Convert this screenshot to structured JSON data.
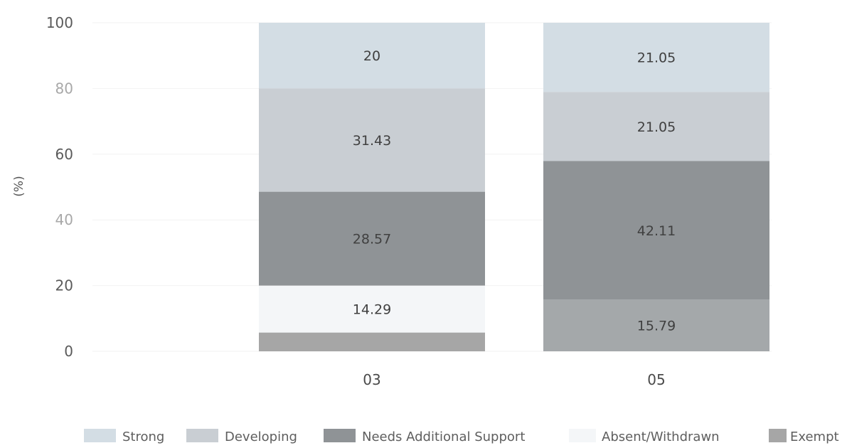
{
  "chart_data": {
    "type": "bar",
    "stacked": true,
    "title": "",
    "xlabel": "",
    "ylabel": "(%)",
    "ylim": [
      0,
      100
    ],
    "yticks": [
      0,
      20,
      40,
      60,
      80,
      100
    ],
    "categories": [
      "03",
      "05"
    ],
    "series": [
      {
        "name": "Exempt",
        "values": [
          5.71,
          0
        ],
        "labels": [
          "",
          ""
        ],
        "color": "#a6a6a6"
      },
      {
        "name": "Absent/Withdrawn",
        "values": [
          14.29,
          15.79
        ],
        "labels": [
          "14.29",
          "15.79"
        ],
        "color": "#f4f6f8"
      },
      {
        "name": "Needs Additional Support",
        "values": [
          28.57,
          42.11
        ],
        "labels": [
          "28.57",
          "42.11"
        ],
        "color": "#8f9396"
      },
      {
        "name": "Developing",
        "values": [
          31.43,
          21.05
        ],
        "labels": [
          "31.43",
          "21.05"
        ],
        "color": "#c9ced3"
      },
      {
        "name": "Strong",
        "values": [
          20,
          21.05
        ],
        "labels": [
          "20",
          "21.05"
        ],
        "color": "#d3dde4"
      }
    ],
    "bar_fill_overrides": {
      "1": {
        "05": "#a4a8aa"
      }
    },
    "legend": {
      "position": "bottom",
      "order": [
        "Strong",
        "Developing",
        "Needs Additional Support",
        "Absent/Withdrawn",
        "Exempt"
      ]
    },
    "grid": true
  }
}
